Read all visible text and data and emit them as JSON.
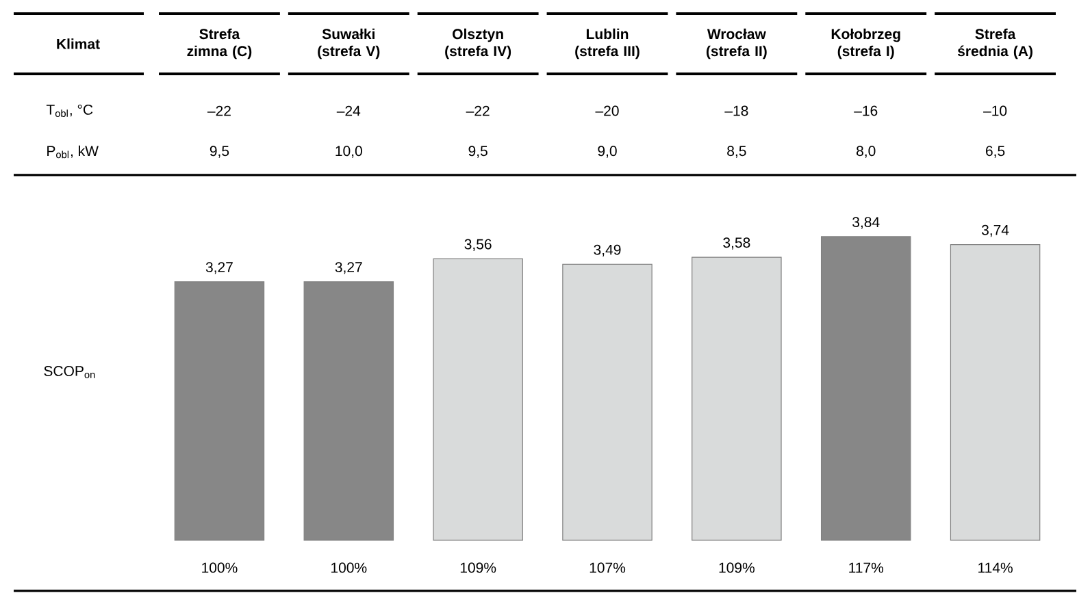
{
  "chart_data": {
    "type": "bar",
    "categories": [
      "Strefa zimna (C)",
      "Suwałki (strefa V)",
      "Olsztyn (strefa IV)",
      "Lublin (strefa III)",
      "Wrocław (strefa II)",
      "Kołobrzeg (strefa I)",
      "Strefa średnia (A)"
    ],
    "values": [
      3.27,
      3.27,
      3.56,
      3.49,
      3.58,
      3.84,
      3.74
    ],
    "value_labels": [
      "3,27",
      "3,27",
      "3,56",
      "3,49",
      "3,58",
      "3,84",
      "3,74"
    ],
    "colors": [
      "#878787",
      "#878787",
      "#d9dbdb",
      "#d9dbdb",
      "#d9dbdb",
      "#878787",
      "#d9dbdb"
    ],
    "ylabel": "SCOP$_{on}$",
    "annotations": [
      "Klimat",
      "T$_{obl}$, °C",
      "P$_{obl}$, kW",
      "–22",
      "–24",
      "–22",
      "–20",
      "–18",
      "–16",
      "–10",
      "9,5",
      "10,0",
      "9,5",
      "9,0",
      "8,5",
      "8,0",
      "6,5",
      "100%",
      "100%",
      "109%",
      "107%",
      "109%",
      "117%",
      "114%"
    ]
  }
}
